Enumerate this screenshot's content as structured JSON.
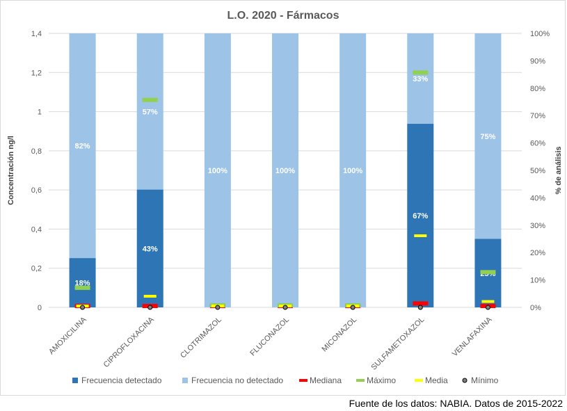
{
  "chart_data": {
    "type": "bar",
    "title": "L.O. 2020 - Fármacos",
    "ylabel": "Concentración ng/l",
    "y2label": "% de análisis",
    "ylim": [
      0,
      1.4
    ],
    "yticks": [
      "0",
      "0,2",
      "0,4",
      "0,6",
      "0,8",
      "1",
      "1,2",
      "1,4"
    ],
    "y2lim": [
      0,
      100
    ],
    "y2ticks": [
      "0%",
      "10%",
      "20%",
      "30%",
      "40%",
      "50%",
      "60%",
      "70%",
      "80%",
      "90%",
      "100%"
    ],
    "grid": true,
    "legend_position": "bottom",
    "categories": [
      "AMOXICILINA",
      "CIPROFLOXACINA",
      "CLOTRIMAZOL",
      "FLUCONAZOL",
      "MICONAZOL",
      "SULFAMETOXAZOL",
      "VENLAFAXINA"
    ],
    "series": [
      {
        "name": "Frecuencia detectado",
        "kind": "stacked-bar-percent",
        "color": "#2e75b6",
        "values": [
          18,
          43,
          0,
          0,
          0,
          67,
          25
        ],
        "labels": [
          "18%",
          "43%",
          "",
          "",
          "",
          "67%",
          "25%"
        ]
      },
      {
        "name": "Frecuencia no detectado",
        "kind": "stacked-bar-percent",
        "color": "#9dc3e6",
        "values": [
          82,
          57,
          100,
          100,
          100,
          33,
          75
        ],
        "labels": [
          "82%",
          "57%",
          "100%",
          "100%",
          "100%",
          "33%",
          "75%"
        ]
      },
      {
        "name": "Mediana",
        "kind": "marker-dash",
        "color": "#ff0000",
        "values": [
          0,
          0,
          0,
          0,
          0,
          0.02,
          0
        ]
      },
      {
        "name": "Máximo",
        "kind": "marker-dash",
        "color": "#92d050",
        "values": [
          0.1,
          1.06,
          0,
          0,
          0,
          1.2,
          0.18
        ]
      },
      {
        "name": "Media",
        "kind": "marker-dash",
        "color": "#ffff00",
        "values": [
          0.005,
          0.057,
          0,
          0,
          0,
          0.366,
          0.03
        ]
      },
      {
        "name": "Mínimo",
        "kind": "marker-circle",
        "color": "#808080",
        "values": [
          0,
          0,
          0,
          0,
          0,
          0,
          0
        ]
      }
    ]
  },
  "source": "Fuente de los datos: NABIA. Datos de 2015-2022"
}
